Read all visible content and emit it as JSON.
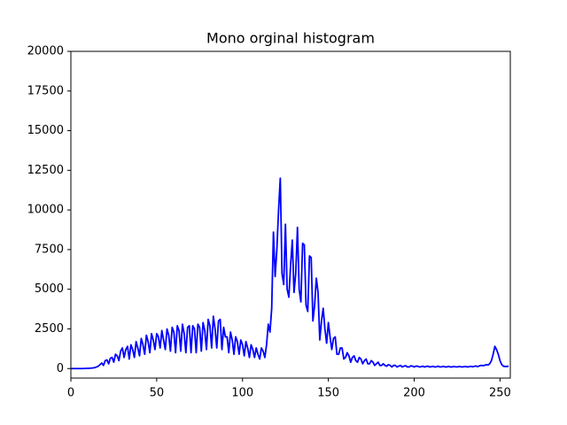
{
  "chart_data": {
    "type": "line",
    "title": "Mono orginal histogram",
    "color": "#0000ff",
    "grid": false,
    "xlim": [
      0,
      256
    ],
    "ylim": [
      -600,
      20000
    ],
    "xticks": [
      0,
      50,
      100,
      150,
      200,
      250
    ],
    "yticks": [
      0,
      2500,
      5000,
      7500,
      10000,
      12500,
      15000,
      17500,
      20000
    ],
    "x": [
      0,
      1,
      2,
      3,
      4,
      5,
      6,
      7,
      8,
      9,
      10,
      11,
      12,
      13,
      14,
      15,
      16,
      17,
      18,
      19,
      20,
      21,
      22,
      23,
      24,
      25,
      26,
      27,
      28,
      29,
      30,
      31,
      32,
      33,
      34,
      35,
      36,
      37,
      38,
      39,
      40,
      41,
      42,
      43,
      44,
      45,
      46,
      47,
      48,
      49,
      50,
      51,
      52,
      53,
      54,
      55,
      56,
      57,
      58,
      59,
      60,
      61,
      62,
      63,
      64,
      65,
      66,
      67,
      68,
      69,
      70,
      71,
      72,
      73,
      74,
      75,
      76,
      77,
      78,
      79,
      80,
      81,
      82,
      83,
      84,
      85,
      86,
      87,
      88,
      89,
      90,
      91,
      92,
      93,
      94,
      95,
      96,
      97,
      98,
      99,
      100,
      101,
      102,
      103,
      104,
      105,
      106,
      107,
      108,
      109,
      110,
      111,
      112,
      113,
      114,
      115,
      116,
      117,
      118,
      119,
      120,
      121,
      122,
      123,
      124,
      125,
      126,
      127,
      128,
      129,
      130,
      131,
      132,
      133,
      134,
      135,
      136,
      137,
      138,
      139,
      140,
      141,
      142,
      143,
      144,
      145,
      146,
      147,
      148,
      149,
      150,
      151,
      152,
      153,
      154,
      155,
      156,
      157,
      158,
      159,
      160,
      161,
      162,
      163,
      164,
      165,
      166,
      167,
      168,
      169,
      170,
      171,
      172,
      173,
      174,
      175,
      176,
      177,
      178,
      179,
      180,
      181,
      182,
      183,
      184,
      185,
      186,
      187,
      188,
      189,
      190,
      191,
      192,
      193,
      194,
      195,
      196,
      197,
      198,
      199,
      200,
      201,
      202,
      203,
      204,
      205,
      206,
      207,
      208,
      209,
      210,
      211,
      212,
      213,
      214,
      215,
      216,
      217,
      218,
      219,
      220,
      221,
      222,
      223,
      224,
      225,
      226,
      227,
      228,
      229,
      230,
      231,
      232,
      233,
      234,
      235,
      236,
      237,
      238,
      239,
      240,
      241,
      242,
      243,
      244,
      245,
      246,
      247,
      248,
      249,
      250,
      251,
      252,
      253,
      254,
      255
    ],
    "values": [
      0,
      0,
      0,
      0,
      0,
      0,
      0,
      0,
      5,
      10,
      10,
      20,
      30,
      40,
      60,
      100,
      150,
      250,
      350,
      200,
      500,
      550,
      300,
      650,
      700,
      400,
      900,
      800,
      500,
      1100,
      1300,
      700,
      1200,
      1400,
      600,
      1500,
      1200,
      700,
      1700,
      1300,
      800,
      1900,
      1500,
      900,
      2100,
      1700,
      1000,
      2200,
      1800,
      1200,
      2200,
      2000,
      1300,
      2400,
      1800,
      1200,
      2500,
      2100,
      1100,
      2600,
      2300,
      1000,
      2700,
      2400,
      1100,
      2800,
      2200,
      1000,
      2600,
      2700,
      1000,
      2700,
      2500,
      1000,
      2800,
      2600,
      1100,
      2900,
      2400,
      1200,
      3100,
      2700,
      1300,
      3300,
      2500,
      1300,
      3000,
      3100,
      1200,
      2600,
      2000,
      2000,
      1000,
      2300,
      1800,
      900,
      2000,
      1700,
      900,
      1800,
      1500,
      800,
      1700,
      1300,
      700,
      1500,
      1200,
      700,
      1300,
      900,
      600,
      1300,
      1100,
      700,
      1500,
      2800,
      2300,
      3800,
      8600,
      5800,
      7500,
      10000,
      12000,
      6000,
      5300,
      9100,
      5000,
      4500,
      6500,
      8100,
      4800,
      6000,
      8900,
      5000,
      4200,
      7900,
      7800,
      4000,
      3600,
      7100,
      7000,
      3000,
      4000,
      5700,
      4800,
      1800,
      3000,
      3800,
      2500,
      1600,
      2900,
      2000,
      1200,
      1900,
      2000,
      900,
      900,
      1300,
      1300,
      600,
      700,
      1000,
      800,
      400,
      700,
      800,
      500,
      400,
      700,
      600,
      300,
      500,
      600,
      300,
      300,
      500,
      400,
      200,
      300,
      400,
      200,
      200,
      300,
      200,
      150,
      250,
      200,
      100,
      200,
      200,
      100,
      150,
      200,
      100,
      150,
      180,
      100,
      100,
      170,
      150,
      100,
      150,
      150,
      100,
      120,
      150,
      100,
      130,
      150,
      100,
      120,
      140,
      100,
      110,
      150,
      100,
      110,
      140,
      100,
      100,
      140,
      100,
      100,
      130,
      110,
      100,
      130,
      120,
      100,
      120,
      130,
      100,
      120,
      140,
      110,
      140,
      160,
      120,
      170,
      200,
      180,
      200,
      250,
      220,
      300,
      500,
      900,
      1400,
      1200,
      900,
      500,
      250,
      150,
      130,
      130,
      150
    ]
  }
}
